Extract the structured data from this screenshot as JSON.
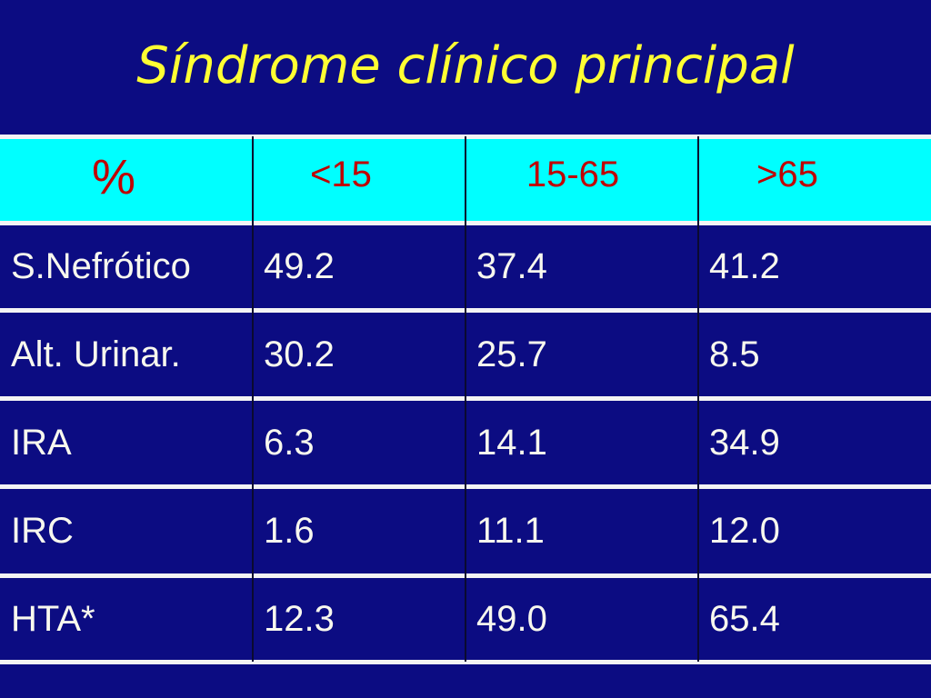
{
  "title": "Síndrome clínico principal",
  "table": {
    "header": [
      "%",
      "<15",
      "15-65",
      ">65"
    ],
    "rows": [
      [
        "S.Nefrótico",
        "49.2",
        "37.4",
        "41.2"
      ],
      [
        "Alt. Urinar.",
        "30.2",
        "25.7",
        "8.5"
      ],
      [
        "IRA",
        "6.3",
        "14.1",
        "34.9"
      ],
      [
        "IRC",
        "1.6",
        "11.1",
        "12.0"
      ],
      [
        "HTA*",
        "12.3",
        "49.0",
        "65.4"
      ]
    ]
  }
}
